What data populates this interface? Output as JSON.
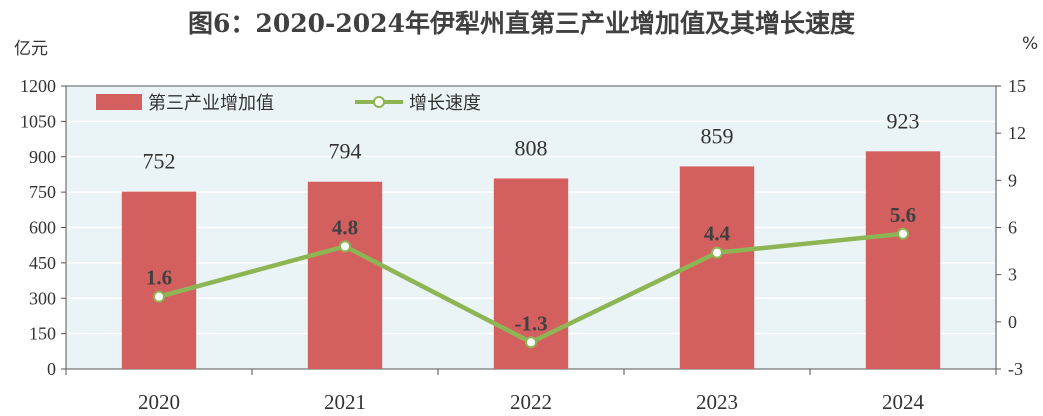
{
  "title": "图6：2020-2024年伊犁州直第三产业增加值及其增长速度",
  "left_unit": "亿元",
  "right_unit": "%",
  "colors": {
    "bar": "#d45f5f",
    "line": "#8db553",
    "plot_bg": "#eaf4f7",
    "grid": "#ffffff"
  },
  "chart_data": {
    "type": "bar",
    "categories": [
      "2020",
      "2021",
      "2022",
      "2023",
      "2024"
    ],
    "series": [
      {
        "name": "第三产业增加值",
        "type": "bar",
        "axis": "left",
        "values": [
          752,
          794,
          808,
          859,
          923
        ]
      },
      {
        "name": "增长速度",
        "type": "line",
        "axis": "right",
        "values": [
          1.6,
          4.8,
          -1.3,
          4.4,
          5.6
        ]
      }
    ],
    "bar_labels": [
      "752",
      "794",
      "808",
      "859",
      "923"
    ],
    "line_labels": [
      "1.6",
      "4.8",
      "-1.3",
      "4.4",
      "5.6"
    ],
    "ylim_left": [
      0,
      1200
    ],
    "yticks_left": [
      "0",
      "150",
      "300",
      "450",
      "600",
      "750",
      "900",
      "1050",
      "1200"
    ],
    "ylim_right": [
      -3,
      15
    ],
    "yticks_right": [
      "-3",
      "0",
      "3",
      "6",
      "9",
      "12",
      "15"
    ],
    "legend_position": "top-left",
    "grid": true
  }
}
